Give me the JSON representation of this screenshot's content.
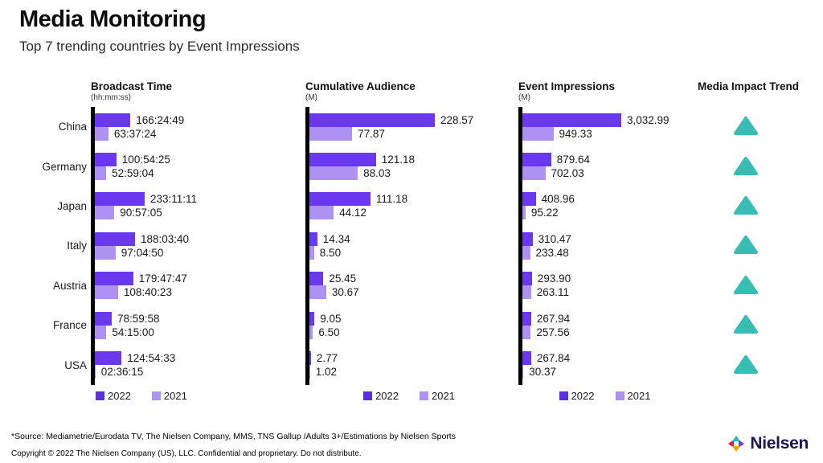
{
  "header": {
    "title": "Media Monitoring",
    "subtitle": "Top 7 trending countries by Event Impressions"
  },
  "colors": {
    "bar_2022": "#6a38ed",
    "bar_2021": "#ad92f2",
    "trend_up": "#38bdb2",
    "axis": "#000000",
    "logo_text": "#1e1550",
    "logo_red": "#e11b4c",
    "logo_teal": "#2fb5b2",
    "logo_purple": "#7d3bf0",
    "logo_orange": "#f7a400"
  },
  "legend": {
    "items": [
      {
        "label": "2022",
        "color": "#5b2ee1"
      },
      {
        "label": "2021",
        "color": "#ad92f2"
      }
    ]
  },
  "trend": {
    "title": "Media Impact Trend",
    "direction": "up",
    "icon": "up-triangle",
    "color": "#38bdb2"
  },
  "chart_data": [
    {
      "type": "bar",
      "title": "Broadcast Time",
      "unit": "(hh:mm:ss)",
      "orientation": "horizontal",
      "legend_position": "bottom",
      "grid": false,
      "categories": [
        "China",
        "Germany",
        "Japan",
        "Italy",
        "Austria",
        "France",
        "USA"
      ],
      "series": [
        {
          "name": "2022",
          "labels": [
            "166:24:49",
            "100:54:25",
            "233:11:11",
            "188:03:40",
            "179:47:47",
            "78:59:58",
            "124:54:33"
          ],
          "values": [
            166.4136,
            100.9069,
            233.1864,
            188.0611,
            179.7964,
            78.9994,
            124.9092
          ]
        },
        {
          "name": "2021",
          "labels": [
            "63:37:24",
            "52:59:04",
            "90:57:05",
            "97:04:50",
            "108:40:23",
            "54:15:00",
            "02:36:15"
          ],
          "values": [
            63.6233,
            52.9844,
            90.9514,
            97.0806,
            108.6731,
            54.25,
            2.6042
          ]
        }
      ]
    },
    {
      "type": "bar",
      "title": "Cumulative Audience",
      "unit": "(M)",
      "orientation": "horizontal",
      "legend_position": "bottom",
      "grid": false,
      "categories": [
        "China",
        "Germany",
        "Japan",
        "Italy",
        "Austria",
        "France",
        "USA"
      ],
      "series": [
        {
          "name": "2022",
          "labels": [
            "228.57",
            "121.18",
            "111.18",
            "14.34",
            "25.45",
            "9.05",
            "2.77"
          ],
          "values": [
            228.57,
            121.18,
            111.18,
            14.34,
            25.45,
            9.05,
            2.77
          ]
        },
        {
          "name": "2021",
          "labels": [
            "77.87",
            "88.03",
            "44.12",
            "8.50",
            "30.67",
            "6.50",
            "1.02"
          ],
          "values": [
            77.87,
            88.03,
            44.12,
            8.5,
            30.67,
            6.5,
            1.02
          ]
        }
      ]
    },
    {
      "type": "bar",
      "title": "Event Impressions",
      "unit": "(M)",
      "orientation": "horizontal",
      "legend_position": "bottom",
      "grid": false,
      "categories": [
        "China",
        "Germany",
        "Japan",
        "Italy",
        "Austria",
        "France",
        "USA"
      ],
      "series": [
        {
          "name": "2022",
          "labels": [
            "3,032.99",
            "879.64",
            "408.96",
            "310.47",
            "293.90",
            "267.94",
            "267.84"
          ],
          "values": [
            3032.99,
            879.64,
            408.96,
            310.47,
            293.9,
            267.94,
            267.84
          ]
        },
        {
          "name": "2021",
          "labels": [
            "949.33",
            "702.03",
            "95.22",
            "233.48",
            "263.11",
            "257.56",
            "30.37"
          ],
          "values": [
            949.33,
            702.03,
            95.22,
            233.48,
            263.11,
            257.56,
            30.37
          ]
        }
      ]
    }
  ],
  "footer": {
    "source": "*Source: Mediametrie/Eurodata TV, The Nielsen Company, MMS, TNS Gallup /Adults 3+/Estimations by Nielsen Sports",
    "copyright": "Copyright © 2022 The Nielsen Company (US), LLC. Confidential and proprietary. Do not distribute."
  },
  "logo": {
    "text": "Nielsen"
  }
}
